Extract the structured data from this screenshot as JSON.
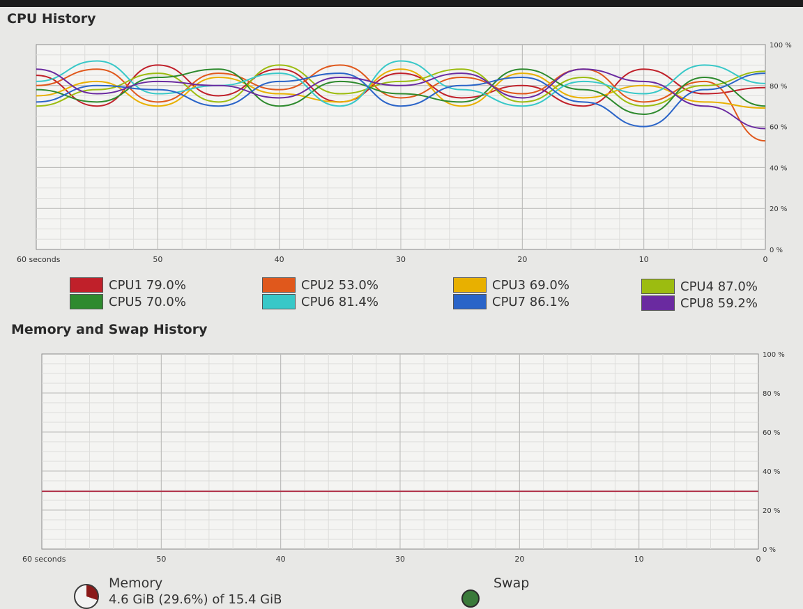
{
  "cpu_section": {
    "title": "CPU History"
  },
  "memory_section": {
    "title": "Memory and Swap History"
  },
  "memory": {
    "label": "Memory",
    "detail": "4.6 GiB (29.6%) of 15.4 GiB"
  },
  "swap": {
    "label": "Swap"
  },
  "colors": {
    "CPU1": "#c0202a",
    "CPU2": "#e0581c",
    "CPU3": "#e8b000",
    "CPU4": "#9cbc10",
    "CPU5": "#2e8a2e",
    "CPU6": "#38c8c8",
    "CPU7": "#2a64c8",
    "CPU8": "#6a2aa0",
    "memory": "#b2324a"
  },
  "chart_data": [
    {
      "type": "line",
      "title": "CPU History",
      "x_ticks": [
        "60 seconds",
        "50",
        "40",
        "30",
        "20",
        "10",
        "0"
      ],
      "y_ticks": [
        "100 %",
        "80 %",
        "60 %",
        "40 %",
        "20 %",
        "0 %"
      ],
      "xlim": [
        60,
        0
      ],
      "ylim": [
        0,
        100
      ],
      "grid": true,
      "legend_position": "bottom",
      "x": [
        60,
        55,
        50,
        45,
        40,
        35,
        30,
        25,
        20,
        15,
        10,
        5,
        0
      ],
      "series": [
        {
          "name": "CPU1",
          "legend": "CPU1 79.0%",
          "values": [
            85,
            70,
            90,
            75,
            88,
            72,
            86,
            74,
            80,
            70,
            88,
            76,
            79
          ]
        },
        {
          "name": "CPU2",
          "legend": "CPU2 53.0%",
          "values": [
            80,
            88,
            72,
            86,
            78,
            90,
            74,
            84,
            76,
            88,
            72,
            82,
            53
          ]
        },
        {
          "name": "CPU3",
          "legend": "CPU3 69.0%",
          "values": [
            75,
            82,
            70,
            84,
            76,
            72,
            88,
            70,
            86,
            74,
            80,
            72,
            69
          ]
        },
        {
          "name": "CPU4",
          "legend": "CPU4 87.0%",
          "values": [
            70,
            78,
            86,
            72,
            90,
            76,
            82,
            88,
            72,
            84,
            70,
            80,
            87
          ]
        },
        {
          "name": "CPU5",
          "legend": "CPU5 70.0%",
          "values": [
            78,
            72,
            84,
            88,
            70,
            82,
            76,
            72,
            88,
            78,
            66,
            84,
            70
          ]
        },
        {
          "name": "CPU6",
          "legend": "CPU6 81.4%",
          "values": [
            82,
            92,
            76,
            80,
            86,
            70,
            92,
            78,
            70,
            82,
            76,
            90,
            81
          ]
        },
        {
          "name": "CPU7",
          "legend": "CPU7 86.1%",
          "values": [
            72,
            80,
            78,
            70,
            82,
            86,
            70,
            80,
            84,
            72,
            60,
            78,
            86
          ]
        },
        {
          "name": "CPU8",
          "legend": "CPU8 59.2%",
          "values": [
            88,
            76,
            82,
            80,
            74,
            84,
            80,
            86,
            74,
            88,
            82,
            70,
            59
          ]
        }
      ]
    },
    {
      "type": "line",
      "title": "Memory and Swap History",
      "x_ticks": [
        "60 seconds",
        "50",
        "40",
        "30",
        "20",
        "10",
        "0"
      ],
      "y_ticks": [
        "100 %",
        "80 %",
        "60 %",
        "40 %",
        "20 %",
        "0 %"
      ],
      "xlim": [
        60,
        0
      ],
      "ylim": [
        0,
        100
      ],
      "grid": true,
      "x": [
        60,
        0
      ],
      "series": [
        {
          "name": "Memory",
          "values": [
            29.6,
            29.6
          ]
        }
      ]
    }
  ]
}
